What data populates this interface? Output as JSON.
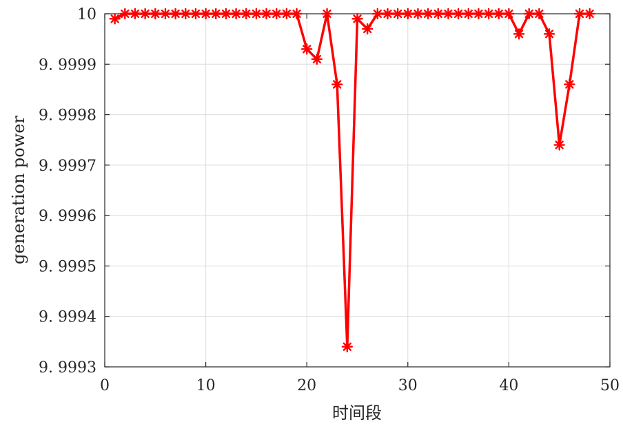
{
  "chart_data": {
    "type": "line",
    "xlabel": "时间段",
    "ylabel": "generation power",
    "xlim": [
      0,
      50
    ],
    "ylim": [
      9.9993,
      10
    ],
    "xticks": [
      0,
      10,
      20,
      30,
      40,
      50
    ],
    "yticks": [
      9.9993,
      9.9994,
      9.9995,
      9.9996,
      9.9997,
      9.9998,
      9.9999,
      10
    ],
    "ytick_labels": [
      "9. 9993",
      "9. 9994",
      "9. 9995",
      "9. 9996",
      "9. 9997",
      "9. 9998",
      "9. 9999",
      "10"
    ],
    "grid": true,
    "marker": "asterisk",
    "color": "#ff0000",
    "series": [
      {
        "x": [
          1,
          2,
          3,
          4,
          5,
          6,
          7,
          8,
          9,
          10,
          11,
          12,
          13,
          14,
          15,
          16,
          17,
          18,
          19,
          20,
          21,
          22,
          23,
          24,
          25,
          26,
          27,
          28,
          29,
          30,
          31,
          32,
          33,
          34,
          35,
          36,
          37,
          38,
          39,
          40,
          41,
          42,
          43,
          44,
          45,
          46,
          47,
          48
        ],
        "y": [
          9.99999,
          10,
          10,
          10,
          10,
          10,
          10,
          10,
          10,
          10,
          10,
          10,
          10,
          10,
          10,
          10,
          10,
          10,
          10,
          9.99993,
          9.99991,
          10,
          9.99986,
          9.99934,
          9.99999,
          9.99997,
          10,
          10,
          10,
          10,
          10,
          10,
          10,
          10,
          10,
          10,
          10,
          10,
          10,
          10,
          9.99996,
          10,
          10,
          9.99996,
          9.99974,
          9.99986,
          10,
          10
        ]
      }
    ]
  }
}
